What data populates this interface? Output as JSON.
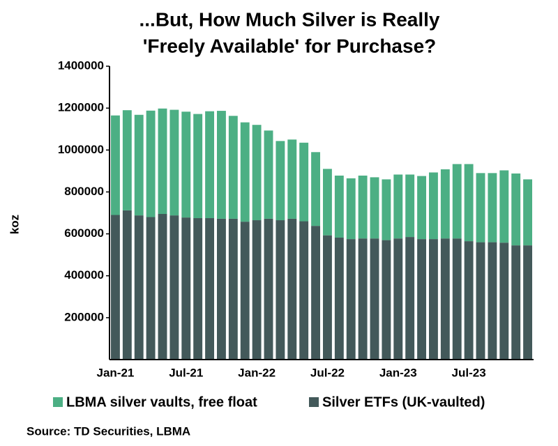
{
  "chart_data": {
    "type": "stacked_bar",
    "title": [
      "...But, How Much Silver is Really",
      "'Freely Available' for Purchase?"
    ],
    "ylabel": "koz",
    "source": "Source: TD Securities, LBMA",
    "categories": [
      "Jan-21",
      null,
      null,
      null,
      null,
      null,
      "Jul-21",
      null,
      null,
      null,
      null,
      null,
      "Jan-22",
      null,
      null,
      null,
      null,
      null,
      "Jul-22",
      null,
      null,
      null,
      null,
      null,
      "Jan-23",
      null,
      null,
      null,
      null,
      null,
      "Jul-23",
      null,
      null,
      null,
      null,
      null
    ],
    "series": [
      {
        "name": "LBMA silver vaults, free float",
        "color": "#4caf84",
        "values": [
          475000,
          478000,
          480000,
          508000,
          503000,
          504000,
          505000,
          497000,
          510000,
          515000,
          491000,
          474000,
          455000,
          421000,
          378000,
          378000,
          375000,
          352000,
          317000,
          296000,
          290000,
          300000,
          292000,
          290000,
          305000,
          298000,
          301000,
          318000,
          330000,
          355000,
          368000,
          330000,
          330000,
          345000,
          343000,
          315000
        ]
      },
      {
        "name": "Silver ETFs (UK-vaulted)",
        "color": "#43595a",
        "values": [
          690000,
          712000,
          688000,
          680000,
          695000,
          688000,
          678000,
          675000,
          675000,
          672000,
          672000,
          658000,
          665000,
          672000,
          665000,
          672000,
          660000,
          638000,
          593000,
          582000,
          575000,
          578000,
          578000,
          570000,
          578000,
          585000,
          575000,
          575000,
          578000,
          578000,
          565000,
          560000,
          560000,
          558000,
          545000,
          545000
        ]
      }
    ],
    "stack_order": "last-series-at-bottom",
    "ylim": [
      0,
      1400000
    ],
    "yticks": [
      200000,
      400000,
      600000,
      800000,
      1000000,
      1200000,
      1400000
    ],
    "grid": false
  }
}
